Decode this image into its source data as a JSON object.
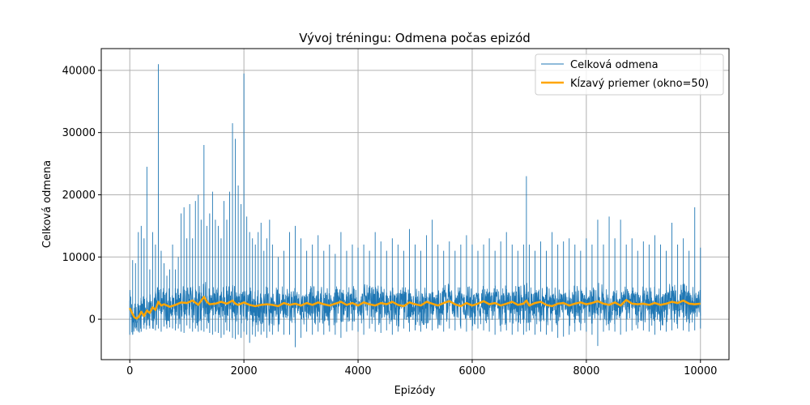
{
  "chart_data": {
    "type": "line",
    "title": "Vývoj tréningu: Odmena počas epizód",
    "xlabel": "Epizódy",
    "ylabel": "Celková odmena",
    "xlim": [
      -500,
      10500
    ],
    "ylim": [
      -6500,
      43500
    ],
    "xticks": [
      0,
      2000,
      4000,
      6000,
      8000,
      10000
    ],
    "yticks": [
      0,
      10000,
      20000,
      30000,
      40000
    ],
    "grid": true,
    "legend_position": "top-right",
    "colors": {
      "raw": "#1f77b4",
      "moving_average": "#ffa500",
      "grid": "#b0b0b0"
    },
    "series": [
      {
        "name": "Celková odmena",
        "kind": "raw",
        "approx": true,
        "x": [
          0,
          50,
          100,
          150,
          200,
          250,
          300,
          350,
          400,
          450,
          500,
          550,
          600,
          650,
          700,
          750,
          800,
          850,
          900,
          950,
          1000,
          1050,
          1100,
          1150,
          1200,
          1250,
          1300,
          1350,
          1400,
          1450,
          1500,
          1550,
          1600,
          1650,
          1700,
          1750,
          1800,
          1850,
          1900,
          1950,
          2000,
          2050,
          2100,
          2150,
          2200,
          2250,
          2300,
          2350,
          2400,
          2450,
          2500,
          2600,
          2700,
          2800,
          2900,
          3000,
          3100,
          3200,
          3300,
          3400,
          3500,
          3600,
          3700,
          3800,
          3900,
          4000,
          4100,
          4200,
          4300,
          4400,
          4500,
          4600,
          4700,
          4800,
          4900,
          5000,
          5100,
          5200,
          5300,
          5400,
          5500,
          5600,
          5700,
          5800,
          5900,
          6000,
          6100,
          6200,
          6300,
          6400,
          6500,
          6600,
          6700,
          6800,
          6900,
          6950,
          7000,
          7100,
          7200,
          7300,
          7400,
          7500,
          7600,
          7700,
          7800,
          7900,
          8000,
          8100,
          8200,
          8300,
          8400,
          8500,
          8600,
          8700,
          8800,
          8900,
          9000,
          9100,
          9200,
          9300,
          9400,
          9500,
          9600,
          9700,
          9800,
          9900,
          10000
        ],
        "high": [
          3000,
          9500,
          9000,
          14000,
          15000,
          13000,
          24500,
          8000,
          14000,
          12000,
          41000,
          11000,
          9000,
          7000,
          8000,
          12000,
          8000,
          10000,
          17000,
          18000,
          13000,
          18500,
          13000,
          19000,
          20000,
          16000,
          28000,
          15000,
          17000,
          20500,
          16000,
          15000,
          13000,
          19000,
          16000,
          20500,
          31500,
          29000,
          21500,
          18500,
          39500,
          16500,
          14000,
          13000,
          12000,
          14000,
          15500,
          11000,
          13000,
          16000,
          12000,
          10000,
          11000,
          14000,
          15000,
          13000,
          11000,
          12000,
          13500,
          11000,
          12000,
          10500,
          14000,
          11000,
          12000,
          11500,
          12000,
          11000,
          14000,
          12500,
          11000,
          13000,
          12000,
          11000,
          14500,
          12000,
          11000,
          13500,
          16000,
          12000,
          11000,
          12500,
          11000,
          12000,
          13500,
          12000,
          11000,
          12000,
          13000,
          11000,
          12500,
          14000,
          12000,
          11000,
          12000,
          23000,
          12000,
          11000,
          12500,
          11000,
          14000,
          12000,
          12500,
          13000,
          12000,
          11000,
          13000,
          12000,
          16000,
          12000,
          16500,
          13000,
          16000,
          12000,
          13000,
          11000,
          12500,
          12000,
          13500,
          12000,
          11000,
          15500,
          12000,
          13000,
          11000,
          18000,
          11500
        ],
        "low": [
          -2500,
          -2500,
          -1500,
          -2000,
          -2000,
          -1500,
          -1000,
          -1500,
          -1500,
          -1800,
          -1500,
          -2000,
          -1200,
          -1500,
          -1300,
          -1500,
          -1800,
          -1500,
          -2000,
          -2200,
          -1000,
          -1500,
          -2000,
          -1500,
          -2000,
          -1800,
          -2000,
          -1500,
          -2200,
          -2500,
          -2000,
          -2200,
          -3000,
          -2500,
          -1800,
          -2000,
          -3000,
          -3200,
          -2500,
          -3000,
          -2000,
          -2500,
          -3800,
          -2500,
          -2800,
          -2000,
          -2500,
          -2000,
          -3000,
          -2000,
          -2500,
          -2000,
          -2500,
          -2500,
          -4500,
          -3000,
          -2000,
          -2500,
          -2000,
          -2500,
          -2000,
          -2500,
          -3000,
          -2000,
          -1800,
          -2000,
          -2500,
          -1500,
          -2000,
          -2200,
          -1800,
          -2500,
          -2000,
          -1500,
          -2000,
          -1800,
          -2000,
          -1500,
          -1800,
          -1500,
          -2000,
          -1500,
          -1800,
          -1500,
          -2000,
          -1800,
          -1500,
          -1800,
          -2000,
          -2500,
          -2000,
          -1800,
          -2500,
          -2000,
          -2500,
          -2000,
          -1800,
          -2500,
          -2000,
          -2500,
          -2000,
          -3000,
          -2800,
          -2500,
          -2000,
          -1800,
          -2000,
          -2500,
          -4300,
          -2000,
          -1800,
          -2000,
          -2500,
          -2000,
          -1800,
          -1500,
          -1800,
          -2000,
          -2500,
          -1800,
          -2000,
          -1800,
          -1500,
          -1800,
          -2000,
          -1800,
          -1500
        ]
      },
      {
        "name": "Kĺzavý priemer (okno=50)",
        "kind": "moving_average",
        "approx": true,
        "x": [
          0,
          40,
          80,
          120,
          160,
          200,
          250,
          300,
          350,
          400,
          450,
          500,
          550,
          600,
          700,
          800,
          900,
          1000,
          1100,
          1200,
          1300,
          1350,
          1400,
          1500,
          1600,
          1700,
          1800,
          1850,
          1900,
          2000,
          2100,
          2200,
          2300,
          2400,
          2500,
          2600,
          2700,
          2800,
          2900,
          3000,
          3100,
          3200,
          3300,
          3400,
          3500,
          3600,
          3700,
          3800,
          3900,
          4000,
          4100,
          4200,
          4300,
          4400,
          4500,
          4600,
          4700,
          4800,
          4900,
          5000,
          5100,
          5200,
          5300,
          5400,
          5500,
          5600,
          5700,
          5800,
          5900,
          6000,
          6100,
          6200,
          6300,
          6400,
          6500,
          6600,
          6700,
          6800,
          6900,
          6950,
          7000,
          7100,
          7200,
          7300,
          7400,
          7500,
          7600,
          7700,
          7800,
          7900,
          8000,
          8100,
          8200,
          8300,
          8400,
          8500,
          8600,
          8700,
          8800,
          8900,
          9000,
          9100,
          9200,
          9300,
          9400,
          9500,
          9600,
          9700,
          9800,
          9900,
          10000
        ],
        "y": [
          1800,
          1000,
          300,
          100,
          400,
          1200,
          500,
          1400,
          1000,
          1900,
          1500,
          2800,
          2200,
          2400,
          2000,
          2300,
          2700,
          2600,
          3000,
          2300,
          3600,
          2800,
          2400,
          2500,
          2800,
          2500,
          3000,
          2500,
          2300,
          2700,
          2300,
          2100,
          2300,
          2400,
          2300,
          2100,
          2600,
          2300,
          2500,
          2200,
          2600,
          2300,
          2700,
          2400,
          2200,
          2500,
          2800,
          2300,
          2600,
          2200,
          2700,
          2400,
          2200,
          2600,
          2400,
          2800,
          2300,
          2100,
          2700,
          2400,
          2200,
          2800,
          2500,
          2200,
          2600,
          2900,
          2400,
          2100,
          2600,
          2200,
          2500,
          2900,
          2400,
          2600,
          2200,
          2500,
          2800,
          2300,
          2500,
          3000,
          2200,
          2600,
          2800,
          2300,
          2100,
          2500,
          2600,
          2200,
          2500,
          2700,
          2400,
          2600,
          2900,
          2500,
          2300,
          2700,
          2200,
          3100,
          2500,
          2400,
          2500,
          2300,
          2600,
          2300,
          2500,
          2800,
          2600,
          3000,
          2500,
          2400,
          2500
        ]
      }
    ]
  }
}
